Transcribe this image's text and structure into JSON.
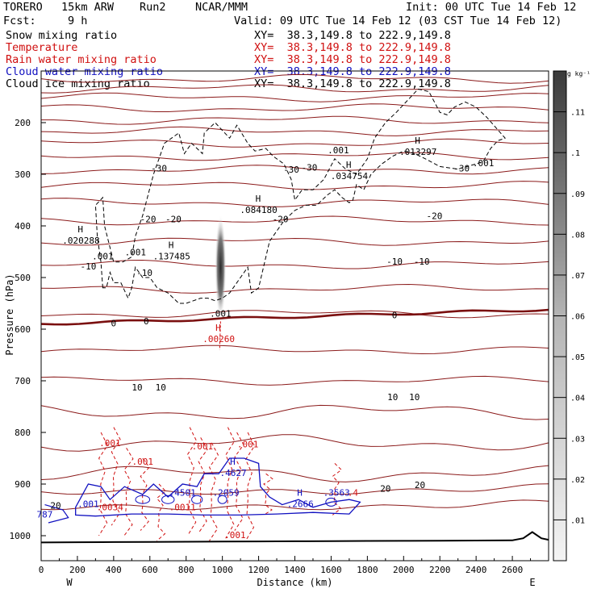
{
  "header": {
    "model": "TORERO",
    "resolution": "15km ARW",
    "run": "Run2",
    "center": "NCAR/MMM",
    "init": "Init: 00 UTC Tue 14 Feb 12",
    "fcst": "Fcst:",
    "fcst_hours": "9 h",
    "valid": "Valid: 09 UTC Tue 14 Feb 12 (03 CST Tue 14 Feb 12)"
  },
  "fields": [
    {
      "label": "Snow mixing ratio",
      "color": "#000000",
      "xy": "XY=  38.3,149.8 to 222.9,149.8"
    },
    {
      "label": "Temperature",
      "color": "#d01010",
      "xy": "XY=  38.3,149.8 to 222.9,149.8"
    },
    {
      "label": "Rain water mixing ratio",
      "color": "#d01010",
      "xy": "XY=  38.3,149.8 to 222.9,149.8"
    },
    {
      "label": "Cloud water mixing ratio",
      "color": "#1010c0",
      "xy": "XY=  38.3,149.8 to 222.9,149.8"
    },
    {
      "label": "Cloud ice mixing ratio",
      "color": "#000000",
      "xy": "XY=  38.3,149.8 to 222.9,149.8"
    }
  ],
  "chart_data": {
    "type": "cross-section contour",
    "xlabel": "Distance (km)",
    "ylabel": "Pressure (hPa)",
    "x_ticks": [
      "0",
      "200",
      "400",
      "600",
      "800",
      "1000",
      "1200",
      "1400",
      "1600",
      "1800",
      "2000",
      "2200",
      "2400",
      "2600"
    ],
    "y_ticks": [
      "200",
      "300",
      "400",
      "500",
      "600",
      "700",
      "800",
      "900",
      "1000"
    ],
    "xlim": [
      0,
      2800
    ],
    "ylim": [
      1050,
      100
    ],
    "x_left_label": "W",
    "x_right_label": "E",
    "colorbar": {
      "unit": "g kg⁻¹",
      "ticks": [
        ".01",
        ".02",
        ".03",
        ".04",
        ".05",
        ".06",
        ".07",
        ".08",
        ".09",
        ".1",
        ".11"
      ],
      "range": [
        0,
        0.12
      ]
    },
    "temperature_isotherms_C": [
      -30,
      -20,
      -10,
      0,
      10,
      20
    ],
    "temperature_labels": [
      {
        "text": "-30",
        "x": 650,
        "p": 290
      },
      {
        "text": "-30",
        "x": 1380,
        "p": 292
      },
      {
        "text": "-30",
        "x": 1480,
        "p": 288
      },
      {
        "text": "-30",
        "x": 2320,
        "p": 290
      },
      {
        "text": "-20",
        "x": 590,
        "p": 388
      },
      {
        "text": "-20",
        "x": 730,
        "p": 388
      },
      {
        "text": "-20",
        "x": 1320,
        "p": 388
      },
      {
        "text": "-20",
        "x": 2170,
        "p": 382
      },
      {
        "text": "-10",
        "x": 260,
        "p": 480
      },
      {
        "text": "-10",
        "x": 570,
        "p": 492
      },
      {
        "text": "-10",
        "x": 1950,
        "p": 470
      },
      {
        "text": "-10",
        "x": 2100,
        "p": 470
      },
      {
        "text": "0",
        "x": 400,
        "p": 590
      },
      {
        "text": "0",
        "x": 580,
        "p": 586
      },
      {
        "text": "0",
        "x": 1950,
        "p": 574
      },
      {
        "text": "10",
        "x": 530,
        "p": 714
      },
      {
        "text": "10",
        "x": 660,
        "p": 714
      },
      {
        "text": "10",
        "x": 1940,
        "p": 733
      },
      {
        "text": "10",
        "x": 2060,
        "p": 733
      },
      {
        "text": "20",
        "x": 80,
        "p": 943
      },
      {
        "text": "20",
        "x": 1900,
        "p": 910
      },
      {
        "text": "20",
        "x": 2090,
        "p": 903
      }
    ],
    "extrema_labels": [
      {
        "mark": "H",
        "value": ".020288",
        "x": 220,
        "p": 430,
        "color": "#000000"
      },
      {
        "mark": "",
        "value": ".001",
        "x": 340,
        "p": 460,
        "color": "#000000"
      },
      {
        "mark": "",
        "value": ".001",
        "x": 520,
        "p": 452,
        "color": "#000000"
      },
      {
        "mark": "H",
        "value": ".137485",
        "x": 720,
        "p": 460,
        "color": "#000000"
      },
      {
        "mark": "H",
        "value": ".084180",
        "x": 1200,
        "p": 370,
        "color": "#000000"
      },
      {
        "mark": "",
        "value": ".001",
        "x": 1640,
        "p": 255,
        "color": "#000000"
      },
      {
        "mark": "H",
        "value": ".034754",
        "x": 1700,
        "p": 305,
        "color": "#000000"
      },
      {
        "mark": "H",
        "value": ".013297",
        "x": 2080,
        "p": 258,
        "color": "#000000"
      },
      {
        "mark": "",
        "value": ".001",
        "x": 2440,
        "p": 280,
        "color": "#000000"
      },
      {
        "mark": "",
        "value": ".001",
        "x": 990,
        "p": 571,
        "color": "#000000"
      },
      {
        "mark": "H",
        "value": ".00260",
        "x": 980,
        "p": 620,
        "color": "#d01010"
      },
      {
        "mark": "",
        "value": ".001",
        "x": 380,
        "p": 822,
        "color": "#d01010"
      },
      {
        "mark": "",
        "value": ".001",
        "x": 560,
        "p": 858,
        "color": "#d01010"
      },
      {
        "mark": "",
        "value": ".001",
        "x": 890,
        "p": 828,
        "color": "#d01010"
      },
      {
        "mark": "",
        "value": ".001",
        "x": 1140,
        "p": 824,
        "color": "#d01010"
      },
      {
        "mark": "",
        "value": ".001",
        "x": 1070,
        "p": 1000,
        "color": "#d01010"
      },
      {
        "mark": "",
        "value": ".0011",
        "x": 780,
        "p": 946,
        "color": "#d01010"
      },
      {
        "mark": "",
        "value": ".0034",
        "x": 380,
        "p": 946,
        "color": "#d01010"
      },
      {
        "mark": "",
        "value": ".001",
        "x": 260,
        "p": 940,
        "color": "#1010c0"
      },
      {
        "mark": "H",
        "value": ".4627",
        "x": 1060,
        "p": 880,
        "color": "#1010c0"
      },
      {
        "mark": "",
        "value": ".4501",
        "x": 780,
        "p": 918,
        "color": "#1010c0"
      },
      {
        "mark": "",
        "value": ".2059",
        "x": 1020,
        "p": 918,
        "color": "#1010c0"
      },
      {
        "mark": "H",
        "value": ".2666",
        "x": 1430,
        "p": 940,
        "color": "#1010c0"
      },
      {
        "mark": "",
        "value": ".3563",
        "x": 1630,
        "p": 918,
        "color": "#1010c0"
      },
      {
        "mark": "",
        "value": ".4",
        "x": 1720,
        "p": 918,
        "color": "#d01010"
      },
      {
        "mark": "",
        "value": "787",
        "x": 20,
        "p": 960,
        "color": "#1010c0"
      }
    ]
  }
}
